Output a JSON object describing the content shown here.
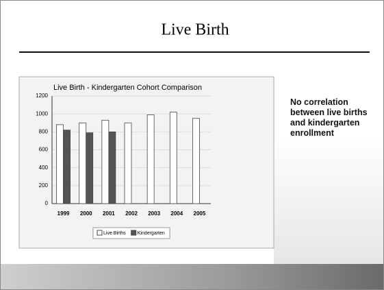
{
  "slide": {
    "title": "Live Birth",
    "note": "No correlation between live births and kindergarten enrollment"
  },
  "chart_data": {
    "type": "bar",
    "title": "Live Birth - Kindergarten Cohort Comparison",
    "categories": [
      "1999",
      "2000",
      "2001",
      "2002",
      "2003",
      "2004",
      "2005"
    ],
    "series": [
      {
        "name": "Live Births",
        "color": "#ffffff",
        "values": [
          880,
          900,
          930,
          900,
          990,
          1020,
          950
        ]
      },
      {
        "name": "Kindergarten",
        "color": "#555555",
        "values": [
          820,
          790,
          800,
          null,
          null,
          null,
          null
        ]
      }
    ],
    "ylim": [
      0,
      1200
    ],
    "yticks": [
      0,
      200,
      400,
      600,
      800,
      1000,
      1200
    ],
    "grid": true
  }
}
